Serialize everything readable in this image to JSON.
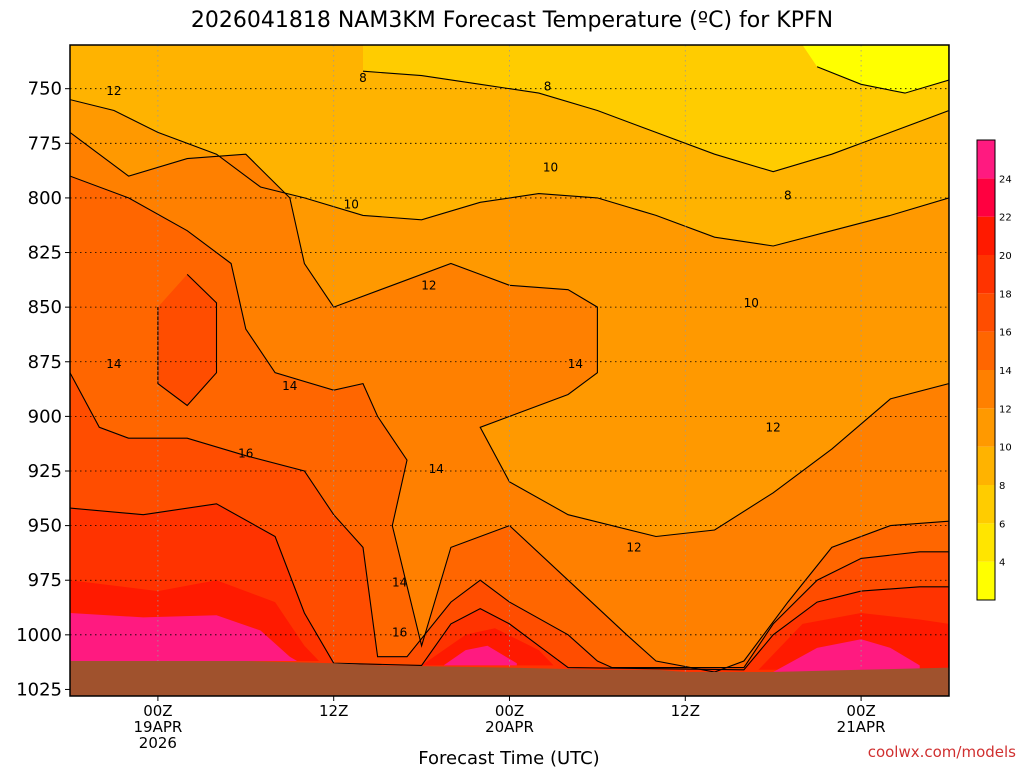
{
  "chart_data": {
    "type": "heatmap",
    "title": "2026041818 NAM3KM Forecast Temperature (ºC) for KPFN",
    "xlabel": "Forecast Time (UTC)",
    "ylabel": "",
    "credit": "coolwx.com/models",
    "y_axis": {
      "unit": "hPa",
      "range": [
        730,
        1028
      ],
      "ticks": [
        750,
        775,
        800,
        825,
        850,
        875,
        900,
        925,
        950,
        975,
        1000,
        1025
      ],
      "tick_labels": [
        "750",
        "775",
        "800",
        "825",
        "850",
        "875",
        "900",
        "925",
        "950",
        "975",
        "1000",
        "1025"
      ]
    },
    "x_axis": {
      "unit": "hours since 2026041818",
      "range": [
        0,
        60
      ],
      "ticks": [
        6,
        18,
        30,
        42,
        54
      ],
      "tick_labels": [
        [
          "00Z",
          "19APR",
          "2026"
        ],
        [
          "12Z"
        ],
        [
          "00Z",
          "20APR"
        ],
        [
          "12Z"
        ],
        [
          "00Z",
          "21APR"
        ]
      ]
    },
    "colorbar": {
      "levels": [
        2,
        4,
        6,
        8,
        10,
        12,
        14,
        16,
        18,
        20,
        22,
        24,
        26
      ],
      "tick_labels": [
        "4",
        "6",
        "8",
        "10",
        "12",
        "14",
        "16",
        "18",
        "20",
        "22",
        "24"
      ],
      "colors": [
        "#ffff00",
        "#ffe500",
        "#ffcc00",
        "#ffb300",
        "#ff9900",
        "#ff8000",
        "#ff6600",
        "#ff4d00",
        "#ff3300",
        "#ff1a00",
        "#ff0040",
        "#ff1a80"
      ]
    },
    "contour_labels": [
      {
        "text": "12",
        "h": 3.0,
        "p": 751
      },
      {
        "text": "8",
        "h": 20.0,
        "p": 745
      },
      {
        "text": "8",
        "h": 32.6,
        "p": 749
      },
      {
        "text": "10",
        "h": 32.8,
        "p": 786
      },
      {
        "text": "10",
        "h": 19.2,
        "p": 803
      },
      {
        "text": "8",
        "h": 49.0,
        "p": 799
      },
      {
        "text": "12",
        "h": 24.5,
        "p": 840
      },
      {
        "text": "10",
        "h": 46.5,
        "p": 848
      },
      {
        "text": "14",
        "h": 3.0,
        "p": 876
      },
      {
        "text": "14",
        "h": 15.0,
        "p": 886
      },
      {
        "text": "14",
        "h": 34.5,
        "p": 876
      },
      {
        "text": "12",
        "h": 48.0,
        "p": 905
      },
      {
        "text": "16",
        "h": 12.0,
        "p": 917
      },
      {
        "text": "14",
        "h": 25.0,
        "p": 924
      },
      {
        "text": "12",
        "h": 38.5,
        "p": 960
      },
      {
        "text": "14",
        "h": 22.5,
        "p": 976
      },
      {
        "text": "16",
        "h": 22.5,
        "p": 999
      }
    ],
    "surface_pressure": [
      [
        0,
        1012
      ],
      [
        6,
        1012
      ],
      [
        12,
        1012
      ],
      [
        18,
        1013
      ],
      [
        21,
        1014
      ],
      [
        30,
        1015
      ],
      [
        36,
        1016
      ],
      [
        40,
        1016
      ],
      [
        42,
        1017
      ],
      [
        48,
        1017
      ],
      [
        54,
        1016
      ],
      [
        60,
        1015
      ]
    ],
    "temperature_bands": [
      {
        "min": 24,
        "color": "#ff1a80",
        "bottom": [
          [
            0,
            1012
          ],
          [
            60,
            1012
          ]
        ],
        "top": [
          [
            0,
            990
          ],
          [
            5,
            992
          ],
          [
            10,
            991
          ],
          [
            13,
            998
          ],
          [
            15,
            1010
          ],
          [
            15.5,
            1012
          ]
        ]
      },
      {
        "min": 24,
        "color": "#ff1a80",
        "bottom": [
          [
            25.5,
            1014
          ],
          [
            30.5,
            1014
          ]
        ],
        "top": [
          [
            25.5,
            1014
          ],
          [
            27,
            1007
          ],
          [
            28.5,
            1005
          ],
          [
            30.5,
            1013
          ]
        ]
      },
      {
        "min": 24,
        "color": "#ff1a80",
        "bottom": [
          [
            48,
            1017
          ],
          [
            58,
            1016
          ]
        ],
        "top": [
          [
            48,
            1017
          ],
          [
            51,
            1006
          ],
          [
            54,
            1002
          ],
          [
            56,
            1006
          ],
          [
            58,
            1014
          ]
        ]
      }
    ]
  }
}
